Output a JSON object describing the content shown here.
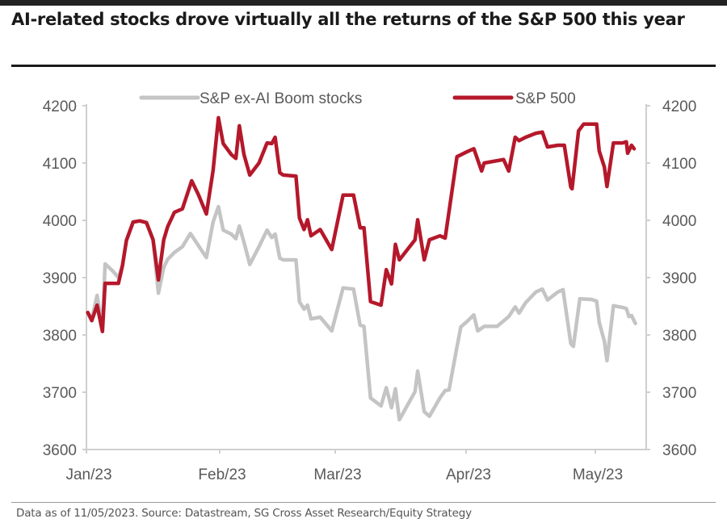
{
  "title": "AI-related stocks drove virtually all the returns of the S&P 500 this year",
  "source": "Data as of 11/05/2023. Source: Datastream, SG Cross Asset Research/Equity Strategy",
  "colors": {
    "sp500": "#b5182b",
    "ex_ai": "#c4c4c4",
    "axis": "#cfcfcf",
    "text": "#595959"
  },
  "chart_data": {
    "type": "line",
    "title": "AI-related stocks drove virtually all the returns of the S&P 500 this year",
    "xlabel": "",
    "ylabel": "",
    "x_unit": "months since Jan 1, 2023",
    "x_ticks": [
      {
        "value": 0,
        "label": "Jan/23"
      },
      {
        "value": 1,
        "label": "Feb/23"
      },
      {
        "value": 2,
        "label": "Mar/23"
      },
      {
        "value": 3,
        "label": "Apr/23"
      },
      {
        "value": 4,
        "label": "May/23"
      }
    ],
    "xlim": [
      0,
      4.4
    ],
    "ylim": [
      3600,
      4200
    ],
    "y_ticks_left": [
      3600,
      3700,
      3800,
      3900,
      4000,
      4100,
      4200
    ],
    "y_ticks_right": [
      3600,
      3700,
      3800,
      3900,
      4000,
      4100,
      4200
    ],
    "grid": false,
    "legend": {
      "placement": "top-center",
      "entries": [
        "S&P ex-AI Boom stocks",
        "S&P 500"
      ]
    },
    "series": [
      {
        "name": "S&P ex-AI Boom stocks",
        "color": "#c4c4c4",
        "points": [
          [
            0.01,
            3839
          ],
          [
            0.04,
            3827
          ],
          [
            0.08,
            3869
          ],
          [
            0.12,
            3813
          ],
          [
            0.14,
            3924
          ],
          [
            0.2,
            3911
          ],
          [
            0.24,
            3900
          ],
          [
            0.27,
            3921
          ],
          [
            0.3,
            3965
          ],
          [
            0.35,
            3997
          ],
          [
            0.4,
            3999
          ],
          [
            0.45,
            3996
          ],
          [
            0.5,
            3966
          ],
          [
            0.54,
            3873
          ],
          [
            0.58,
            3918
          ],
          [
            0.61,
            3932
          ],
          [
            0.66,
            3944
          ],
          [
            0.72,
            3954
          ],
          [
            0.78,
            3977
          ],
          [
            0.84,
            3956
          ],
          [
            0.9,
            3935
          ],
          [
            0.95,
            3997
          ],
          [
            0.99,
            4024
          ],
          [
            1.03,
            3983
          ],
          [
            1.1,
            3976
          ],
          [
            1.14,
            3968
          ],
          [
            1.17,
            3990
          ],
          [
            1.21,
            3962
          ],
          [
            1.26,
            3923
          ],
          [
            1.34,
            3954
          ],
          [
            1.41,
            3983
          ],
          [
            1.45,
            3970
          ],
          [
            1.48,
            3976
          ],
          [
            1.52,
            3934
          ],
          [
            1.55,
            3931
          ],
          [
            1.66,
            3931
          ],
          [
            1.69,
            3858
          ],
          [
            1.73,
            3845
          ],
          [
            1.76,
            3852
          ],
          [
            1.79,
            3828
          ],
          [
            1.87,
            3831
          ],
          [
            1.97,
            3807
          ],
          [
            2.06,
            3882
          ],
          [
            2.14,
            3880
          ],
          [
            2.19,
            3817
          ],
          [
            2.22,
            3815
          ],
          [
            2.27,
            3690
          ],
          [
            2.35,
            3676
          ],
          [
            2.39,
            3708
          ],
          [
            2.43,
            3673
          ],
          [
            2.46,
            3706
          ],
          [
            2.49,
            3652
          ],
          [
            2.61,
            3701
          ],
          [
            2.63,
            3737
          ],
          [
            2.68,
            3666
          ],
          [
            2.72,
            3658
          ],
          [
            2.8,
            3690
          ],
          [
            2.84,
            3703
          ],
          [
            2.87,
            3704
          ],
          [
            2.93,
            3779
          ],
          [
            2.96,
            3814
          ],
          [
            3.01,
            3824
          ],
          [
            3.06,
            3835
          ],
          [
            3.09,
            3807
          ],
          [
            3.14,
            3815
          ],
          [
            3.24,
            3815
          ],
          [
            3.33,
            3832
          ],
          [
            3.38,
            3849
          ],
          [
            3.41,
            3838
          ],
          [
            3.46,
            3856
          ],
          [
            3.54,
            3875
          ],
          [
            3.59,
            3880
          ],
          [
            3.63,
            3861
          ],
          [
            3.71,
            3875
          ],
          [
            3.75,
            3879
          ],
          [
            3.81,
            3785
          ],
          [
            3.83,
            3780
          ],
          [
            3.88,
            3863
          ],
          [
            3.97,
            3862
          ],
          [
            4.01,
            3859
          ],
          [
            4.03,
            3822
          ],
          [
            4.07,
            3789
          ],
          [
            4.09,
            3755
          ],
          [
            4.14,
            3851
          ],
          [
            4.21,
            3848
          ],
          [
            4.24,
            3846
          ],
          [
            4.26,
            3832
          ],
          [
            4.28,
            3834
          ],
          [
            4.31,
            3820
          ]
        ]
      },
      {
        "name": "S&P 500",
        "color": "#b5182b",
        "points": [
          [
            0.01,
            3839
          ],
          [
            0.04,
            3825
          ],
          [
            0.08,
            3852
          ],
          [
            0.12,
            3806
          ],
          [
            0.14,
            3890
          ],
          [
            0.2,
            3890
          ],
          [
            0.24,
            3890
          ],
          [
            0.27,
            3921
          ],
          [
            0.3,
            3965
          ],
          [
            0.35,
            3997
          ],
          [
            0.4,
            3999
          ],
          [
            0.45,
            3996
          ],
          [
            0.5,
            3966
          ],
          [
            0.54,
            3896
          ],
          [
            0.58,
            3966
          ],
          [
            0.61,
            3989
          ],
          [
            0.66,
            4014
          ],
          [
            0.72,
            4020
          ],
          [
            0.79,
            4069
          ],
          [
            0.84,
            4045
          ],
          [
            0.9,
            4011
          ],
          [
            0.95,
            4087
          ],
          [
            0.99,
            4179
          ],
          [
            1.03,
            4134
          ],
          [
            1.1,
            4115
          ],
          [
            1.14,
            4108
          ],
          [
            1.17,
            4165
          ],
          [
            1.21,
            4115
          ],
          [
            1.26,
            4079
          ],
          [
            1.34,
            4100
          ],
          [
            1.41,
            4135
          ],
          [
            1.45,
            4134
          ],
          [
            1.48,
            4145
          ],
          [
            1.52,
            4083
          ],
          [
            1.55,
            4079
          ],
          [
            1.66,
            4077
          ],
          [
            1.69,
            4004
          ],
          [
            1.73,
            3984
          ],
          [
            1.76,
            4001
          ],
          [
            1.79,
            3973
          ],
          [
            1.87,
            3984
          ],
          [
            1.97,
            3949
          ],
          [
            2.06,
            4044
          ],
          [
            2.14,
            4044
          ],
          [
            2.19,
            3987
          ],
          [
            2.22,
            3987
          ],
          [
            2.27,
            3858
          ],
          [
            2.35,
            3852
          ],
          [
            2.39,
            3914
          ],
          [
            2.43,
            3889
          ],
          [
            2.46,
            3958
          ],
          [
            2.49,
            3931
          ],
          [
            2.61,
            3966
          ],
          [
            2.63,
            4001
          ],
          [
            2.68,
            3931
          ],
          [
            2.72,
            3966
          ],
          [
            2.8,
            3973
          ],
          [
            2.84,
            3969
          ],
          [
            2.93,
            4111
          ],
          [
            3.01,
            4120
          ],
          [
            3.06,
            4125
          ],
          [
            3.12,
            4086
          ],
          [
            3.14,
            4100
          ],
          [
            3.29,
            4106
          ],
          [
            3.33,
            4086
          ],
          [
            3.38,
            4145
          ],
          [
            3.41,
            4139
          ],
          [
            3.46,
            4145
          ],
          [
            3.54,
            4152
          ],
          [
            3.59,
            4154
          ],
          [
            3.63,
            4128
          ],
          [
            3.71,
            4131
          ],
          [
            3.76,
            4131
          ],
          [
            3.81,
            4058
          ],
          [
            3.82,
            4055
          ],
          [
            3.87,
            4156
          ],
          [
            3.91,
            4168
          ],
          [
            3.97,
            4168
          ],
          [
            4.01,
            4168
          ],
          [
            4.03,
            4121
          ],
          [
            4.07,
            4093
          ],
          [
            4.09,
            4059
          ],
          [
            4.14,
            4135
          ],
          [
            4.21,
            4135
          ],
          [
            4.24,
            4137
          ],
          [
            4.25,
            4117
          ],
          [
            4.28,
            4131
          ],
          [
            4.3,
            4125
          ]
        ]
      }
    ]
  }
}
